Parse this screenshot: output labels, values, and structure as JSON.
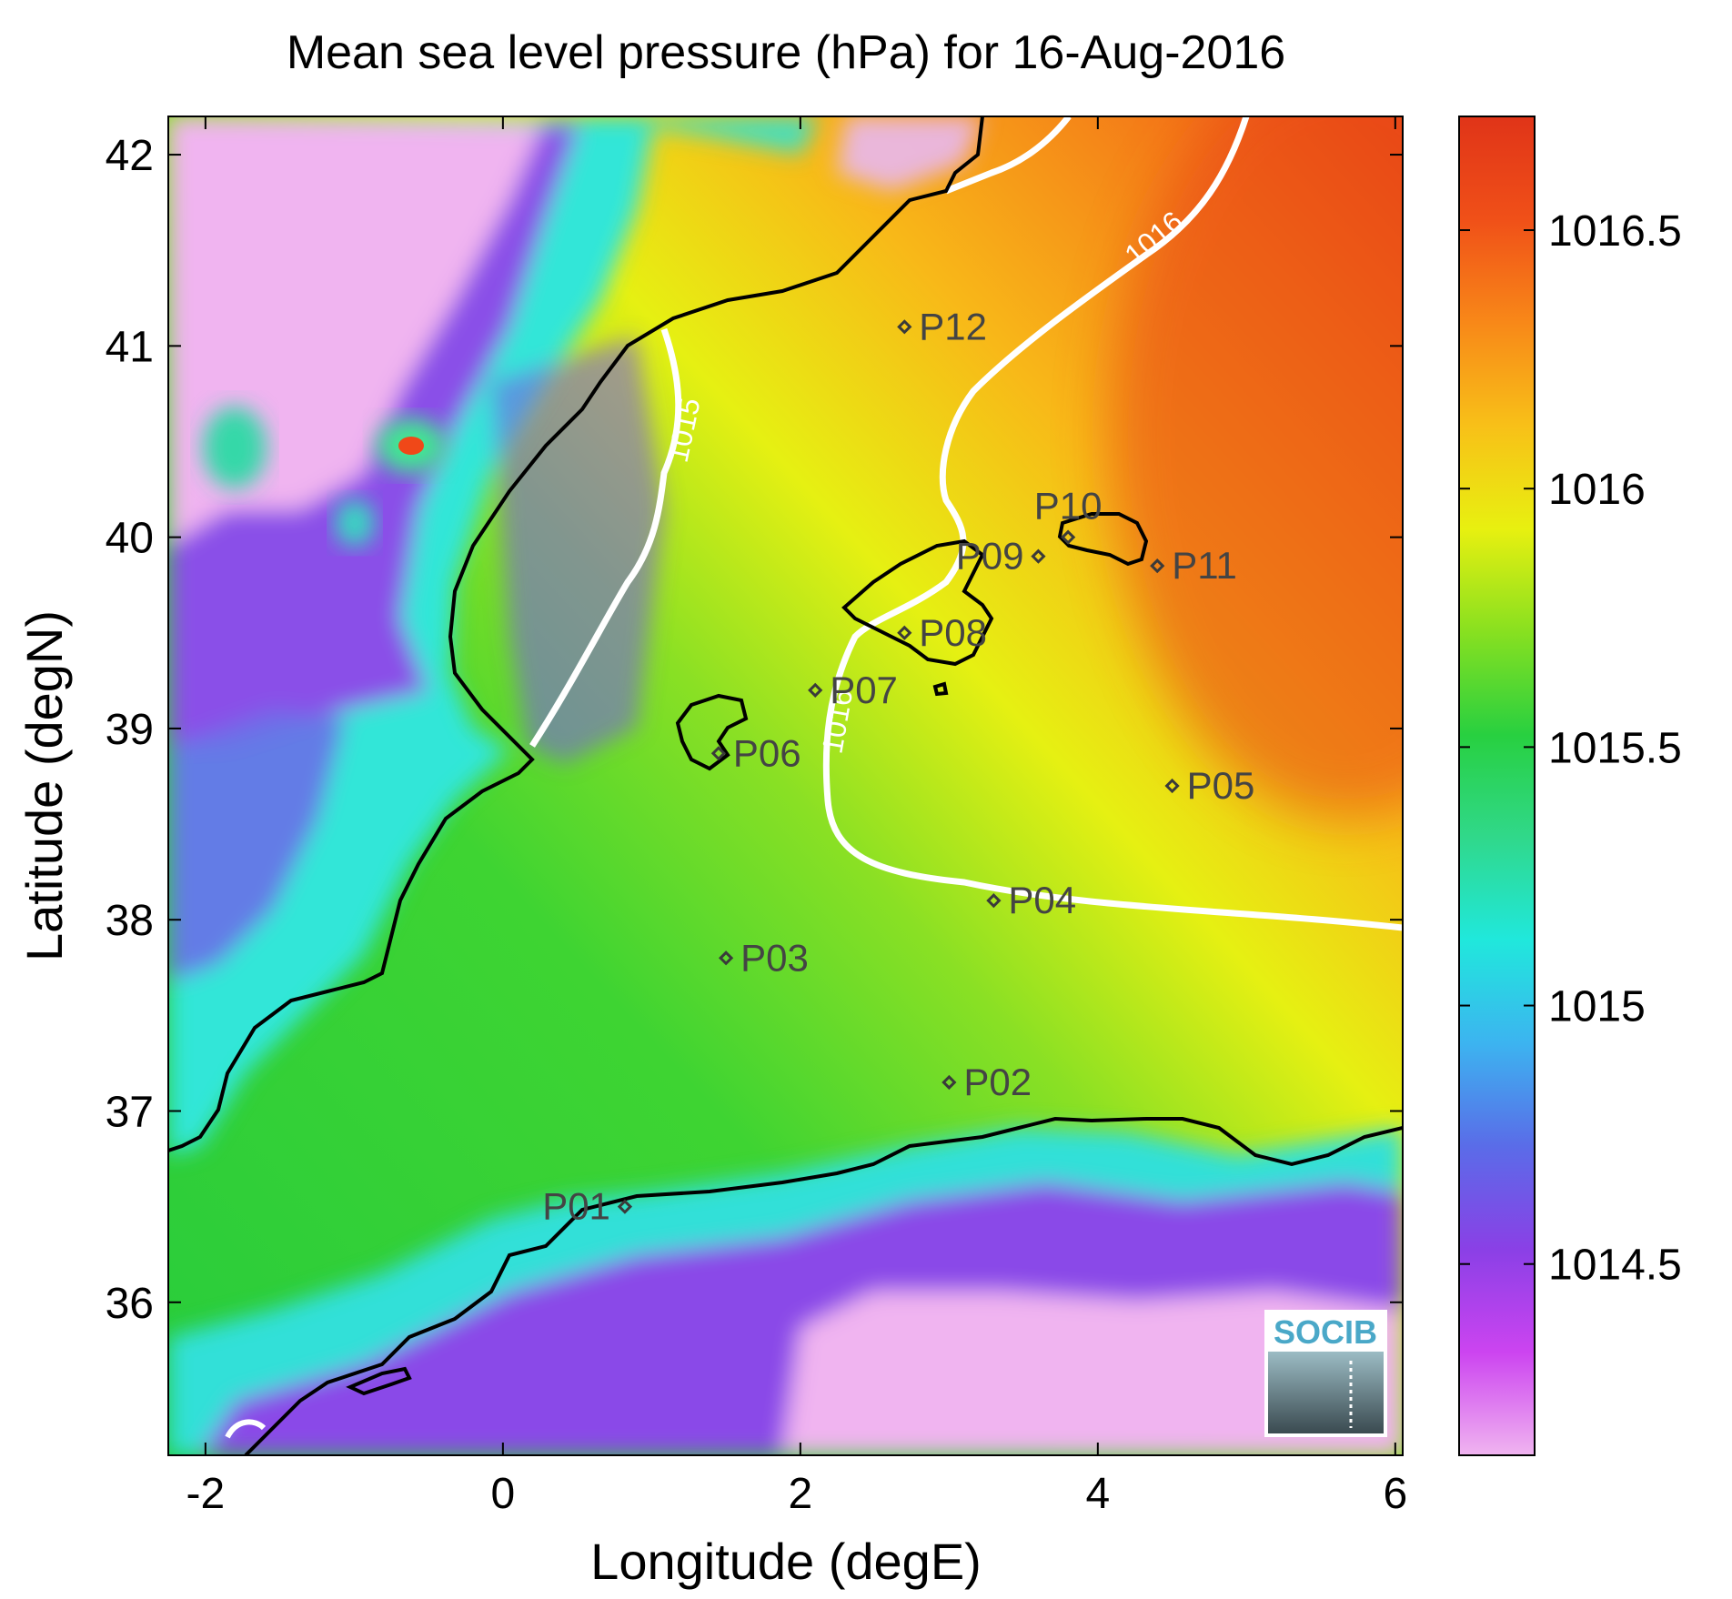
{
  "figure": {
    "title": "Mean sea level pressure (hPa) for 16-Aug-2016",
    "xlabel": "Longitude (degE)",
    "ylabel": "Latitude (degN)",
    "logo_text": "SOCIB"
  },
  "axes": {
    "x_ticks": [
      {
        "value": -2,
        "label": "-2"
      },
      {
        "value": 0,
        "label": "0"
      },
      {
        "value": 2,
        "label": "2"
      },
      {
        "value": 4,
        "label": "4"
      },
      {
        "value": 6,
        "label": "6"
      }
    ],
    "y_ticks": [
      {
        "value": 36,
        "label": "36"
      },
      {
        "value": 37,
        "label": "37"
      },
      {
        "value": 38,
        "label": "38"
      },
      {
        "value": 39,
        "label": "39"
      },
      {
        "value": 40,
        "label": "40"
      },
      {
        "value": 41,
        "label": "41"
      },
      {
        "value": 42,
        "label": "42"
      }
    ],
    "xlim": [
      -2.25,
      6.05
    ],
    "ylim": [
      35.2,
      42.2
    ]
  },
  "colorbar": {
    "range": [
      1014.13,
      1016.72
    ],
    "ticks": [
      {
        "value": 1014.5,
        "label": "1014.5"
      },
      {
        "value": 1015,
        "label": "1015"
      },
      {
        "value": 1015.5,
        "label": "1015.5"
      },
      {
        "value": 1016,
        "label": "1016"
      },
      {
        "value": 1016.5,
        "label": "1016.5"
      }
    ],
    "colors": [
      "#f0b4f0",
      "#cc44f0",
      "#8a40e6",
      "#5a6ce8",
      "#3cb4f0",
      "#20e8dc",
      "#30d88a",
      "#28d040",
      "#88e020",
      "#e8f010",
      "#f8c018",
      "#f88818",
      "#f05018",
      "#e03418"
    ]
  },
  "contours": [
    {
      "label": "1015"
    },
    {
      "label": "1016"
    },
    {
      "label": "1016"
    }
  ],
  "stations": [
    {
      "name": "P01",
      "lon": 0.82,
      "lat": 36.5,
      "side": "left"
    },
    {
      "name": "P02",
      "lon": 3.0,
      "lat": 37.15,
      "side": "right"
    },
    {
      "name": "P03",
      "lon": 1.5,
      "lat": 37.8,
      "side": "right"
    },
    {
      "name": "P04",
      "lon": 3.3,
      "lat": 38.1,
      "side": "right"
    },
    {
      "name": "P05",
      "lon": 4.5,
      "lat": 38.7,
      "side": "right"
    },
    {
      "name": "P06",
      "lon": 1.45,
      "lat": 38.87,
      "side": "right"
    },
    {
      "name": "P07",
      "lon": 2.1,
      "lat": 39.2,
      "side": "right"
    },
    {
      "name": "P08",
      "lon": 2.7,
      "lat": 39.5,
      "side": "right"
    },
    {
      "name": "P09",
      "lon": 3.6,
      "lat": 39.9,
      "side": "left"
    },
    {
      "name": "P10",
      "lon": 3.8,
      "lat": 40.0,
      "side": "above"
    },
    {
      "name": "P11",
      "lon": 4.4,
      "lat": 39.85,
      "side": "right"
    },
    {
      "name": "P12",
      "lon": 2.7,
      "lat": 41.1,
      "side": "right"
    }
  ]
}
